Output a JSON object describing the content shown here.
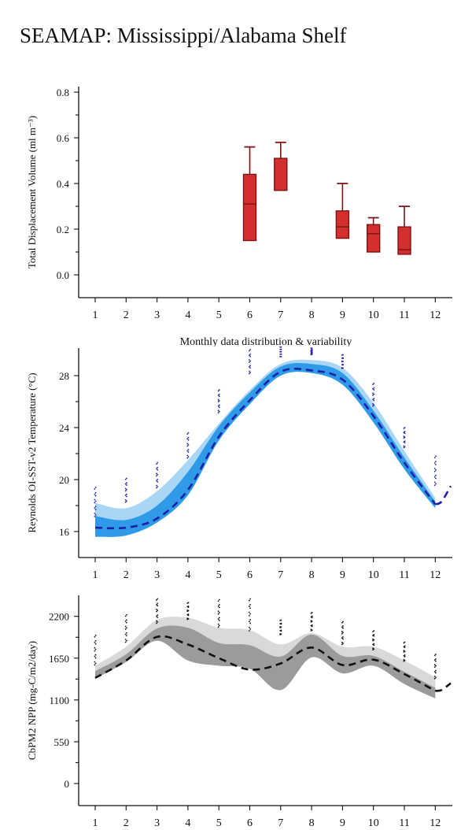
{
  "title": "SEAMAP: Mississippi/Alabama Shelf",
  "chart_data": [
    {
      "type": "box",
      "ylabel": "Total Displacement Volume (ml m⁻³)",
      "xlabel": "Monthly data distribution & variability",
      "x_ticks": [
        "1",
        "2",
        "3",
        "4",
        "5",
        "6",
        "7",
        "8",
        "9",
        "10",
        "11",
        "12"
      ],
      "y_ticks": [
        "0.0",
        "0.2",
        "0.4",
        "0.6",
        "0.8"
      ],
      "xlim": [
        0.5,
        12.5
      ],
      "ylim": [
        -0.1,
        0.81
      ],
      "box_color": "#d32f2f",
      "edge_color": "#7a1515",
      "boxes": [
        {
          "month": 6,
          "min": 0.15,
          "q1": 0.15,
          "median": 0.31,
          "q3": 0.44,
          "max": 0.56
        },
        {
          "month": 7,
          "min": 0.37,
          "q1": 0.37,
          "median": 0.37,
          "q3": 0.51,
          "max": 0.58
        },
        {
          "month": 9,
          "min": 0.16,
          "q1": 0.16,
          "median": 0.21,
          "q3": 0.28,
          "max": 0.4
        },
        {
          "month": 10,
          "min": 0.1,
          "q1": 0.1,
          "median": 0.18,
          "q3": 0.22,
          "max": 0.25
        },
        {
          "month": 11,
          "min": 0.09,
          "q1": 0.09,
          "median": 0.11,
          "q3": 0.21,
          "max": 0.3
        }
      ]
    },
    {
      "type": "line",
      "ylabel": "Reynolds OI-SST-v2 Temperature (°C)",
      "x_ticks": [
        "1",
        "2",
        "3",
        "4",
        "5",
        "6",
        "7",
        "8",
        "9",
        "10",
        "11",
        "12"
      ],
      "y_ticks": [
        "16",
        "20",
        "24",
        "28"
      ],
      "xlim": [
        0.5,
        12.5
      ],
      "ylim": [
        14,
        30
      ],
      "band_outer_color": "#a9d6f5",
      "band_inner_color": "#2e9ae8",
      "line_color": "#1f1fa6",
      "x": [
        1,
        2,
        3,
        4,
        5,
        6,
        7,
        8,
        9,
        10,
        11,
        12
      ],
      "outer_upper": [
        18.2,
        17.8,
        19.1,
        21.5,
        24.3,
        26.9,
        28.9,
        29.2,
        28.6,
        25.9,
        22.2,
        18.6
      ],
      "outer_lower": [
        15.6,
        15.7,
        16.7,
        18.8,
        23.0,
        25.8,
        28.0,
        28.2,
        27.3,
        24.4,
        20.8,
        17.8
      ],
      "inner_upper": [
        17.2,
        16.9,
        18.0,
        20.6,
        24.1,
        26.7,
        28.7,
        28.9,
        28.2,
        25.3,
        21.7,
        18.3
      ],
      "inner_lower": [
        15.6,
        15.7,
        16.7,
        18.8,
        23.0,
        25.8,
        28.0,
        28.2,
        27.3,
        24.4,
        20.8,
        17.8
      ],
      "mean": [
        16.3,
        16.3,
        17.0,
        19.2,
        23.3,
        26.1,
        28.3,
        28.4,
        27.7,
        24.9,
        21.3,
        18.1
      ],
      "mean_ext": [
        [
          12.0,
          18.1
        ],
        [
          12.2,
          18.3
        ],
        [
          12.5,
          19.5
        ]
      ],
      "dots": [
        [
          1,
          17.1,
          19.4
        ],
        [
          2,
          18.2,
          20.1
        ],
        [
          3,
          19.3,
          21.3
        ],
        [
          4,
          21.6,
          23.6
        ],
        [
          5,
          25.1,
          26.9
        ],
        [
          6,
          28.1,
          30.0
        ],
        [
          7,
          29.4,
          30.2
        ],
        [
          8,
          29.6,
          30.1
        ],
        [
          9,
          28.5,
          29.6
        ],
        [
          10,
          25.6,
          27.4
        ],
        [
          11,
          22.4,
          24.0
        ],
        [
          12,
          19.5,
          21.8
        ]
      ]
    },
    {
      "type": "line",
      "ylabel": "CbPM2 NPP (mg-C/m2/day)",
      "x_ticks": [
        "1",
        "2",
        "3",
        "4",
        "5",
        "6",
        "7",
        "8",
        "9",
        "10",
        "11",
        "12"
      ],
      "y_ticks": [
        "0",
        "550",
        "1100",
        "1650",
        "2200"
      ],
      "xlim": [
        0.5,
        12.5
      ],
      "ylim": [
        -200,
        2450
      ],
      "band_outer_color": "#d9d9d9",
      "band_inner_color": "#9b9b9b",
      "line_color": "#111111",
      "x": [
        1,
        2,
        3,
        4,
        5,
        6,
        7,
        8,
        9,
        10,
        11,
        12
      ],
      "outer_upper": [
        1550,
        1800,
        2150,
        2180,
        2050,
        2020,
        1830,
        1980,
        1800,
        1800,
        1620,
        1400
      ],
      "outer_lower": [
        1380,
        1600,
        1880,
        1620,
        1550,
        1510,
        1230,
        1660,
        1450,
        1550,
        1310,
        1120
      ],
      "inner_upper": [
        1480,
        1700,
        2040,
        2050,
        1850,
        1820,
        1670,
        1960,
        1680,
        1680,
        1470,
        1260
      ],
      "inner_lower": [
        1380,
        1600,
        1880,
        1620,
        1550,
        1510,
        1230,
        1660,
        1450,
        1550,
        1310,
        1120
      ],
      "mean": [
        1390,
        1620,
        1930,
        1830,
        1650,
        1500,
        1580,
        1790,
        1560,
        1630,
        1440,
        1220
      ],
      "mean_ext": [
        [
          12.0,
          1220
        ],
        [
          12.2,
          1230
        ],
        [
          12.5,
          1320
        ]
      ],
      "dots": [
        [
          1,
          1550,
          1950
        ],
        [
          2,
          1850,
          2220
        ],
        [
          3,
          2100,
          2430
        ],
        [
          4,
          2150,
          2380
        ],
        [
          5,
          2050,
          2420
        ],
        [
          6,
          2000,
          2430
        ],
        [
          7,
          1950,
          2150
        ],
        [
          8,
          2000,
          2250
        ],
        [
          9,
          1820,
          2130
        ],
        [
          10,
          1750,
          2010
        ],
        [
          11,
          1600,
          1860
        ],
        [
          12,
          1370,
          1700
        ]
      ]
    }
  ]
}
